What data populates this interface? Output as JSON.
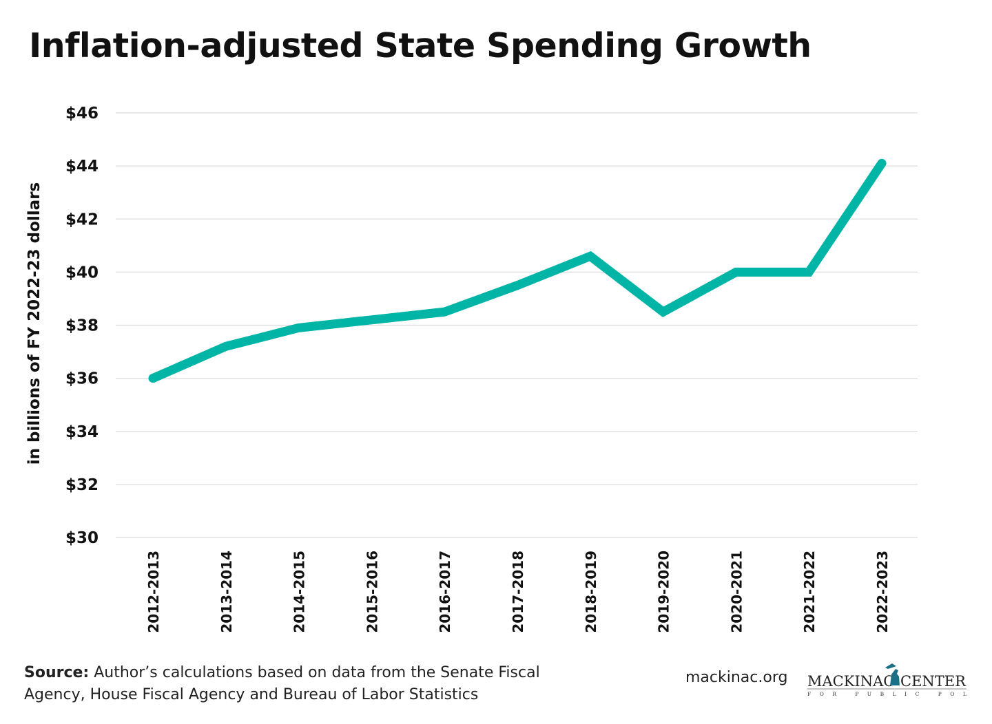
{
  "chart_data": {
    "type": "line",
    "title": "Inflation-adjusted State Spending Growth",
    "ylabel": "in billions of FY 2022-23 dollars",
    "xlabel": "",
    "categories": [
      "2012-2013",
      "2013-2014",
      "2014-2015",
      "2015-2016",
      "2016-2017",
      "2017-2018",
      "2018-2019",
      "2019-2020",
      "2020-2021",
      "2021-2022",
      "2022-2023"
    ],
    "values": [
      36.0,
      37.2,
      37.9,
      38.2,
      38.5,
      39.5,
      40.6,
      38.5,
      40.0,
      40.0,
      44.1
    ],
    "ylim": [
      30,
      46
    ],
    "yticks": [
      30,
      32,
      34,
      36,
      38,
      40,
      42,
      44,
      46
    ],
    "ytick_labels": [
      "$30",
      "$32",
      "$34",
      "$36",
      "$38",
      "$40",
      "$42",
      "$44",
      "$46"
    ],
    "grid": true,
    "line_color": "#00b5a5"
  },
  "footer": {
    "source_label": "Source:",
    "source_text": " Author’s calculations based on data from the Senate Fiscal Agency, House Fiscal Agency and Bureau of Labor Statistics",
    "site": "mackinac.org",
    "logo_text": "MACKINAC CENTER FOR PUBLIC POLICY"
  }
}
